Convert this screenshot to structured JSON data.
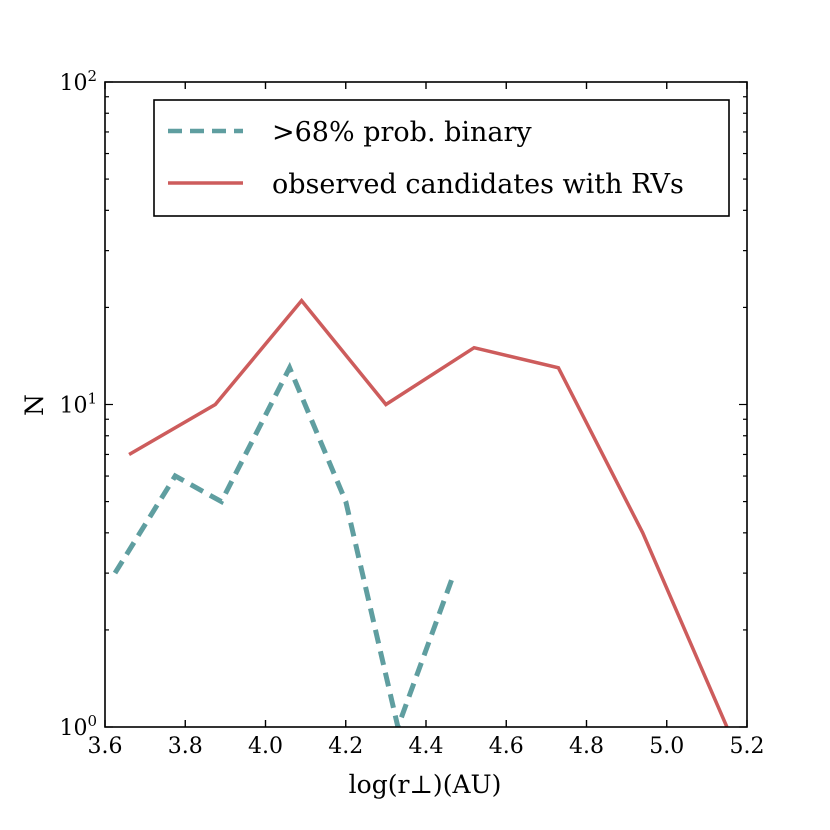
{
  "chart_data": {
    "type": "line",
    "xlabel": "log(r⊥)(AU)",
    "ylabel": "N",
    "xlim": [
      3.6,
      5.2
    ],
    "ylim": [
      1,
      100
    ],
    "yscale": "log",
    "xticks": [
      3.6,
      3.8,
      4.0,
      4.2,
      4.4,
      4.6,
      4.8,
      5.0,
      5.2
    ],
    "xtick_labels": [
      "3.6",
      "3.8",
      "4.0",
      "4.2",
      "4.4",
      "4.6",
      "4.8",
      "5.0",
      "5.2"
    ],
    "yticks": [
      {
        "value": 1,
        "base": "10",
        "exp": "0"
      },
      {
        "value": 10,
        "base": "10",
        "exp": "1"
      },
      {
        "value": 100,
        "base": "10",
        "exp": "2"
      }
    ],
    "grid": false,
    "legend_position": "top-right",
    "series": [
      {
        "name": ">68% prob. binary",
        "label": ">68% prob. binary",
        "color": "#5f9ea0",
        "style": "dashed",
        "x": [
          3.625,
          3.775,
          3.89,
          4.06,
          4.2,
          4.33,
          4.47
        ],
        "y": [
          3,
          6,
          5,
          13,
          5,
          1,
          3
        ]
      },
      {
        "name": "observed candidates with RVs",
        "label": "observed candidates with RVs",
        "color": "#cd5c5c",
        "style": "solid",
        "x": [
          3.66,
          3.875,
          4.09,
          4.3,
          4.52,
          4.73,
          4.94,
          5.15
        ],
        "y": [
          7,
          10,
          21,
          10,
          15,
          13,
          4,
          1
        ]
      }
    ]
  }
}
